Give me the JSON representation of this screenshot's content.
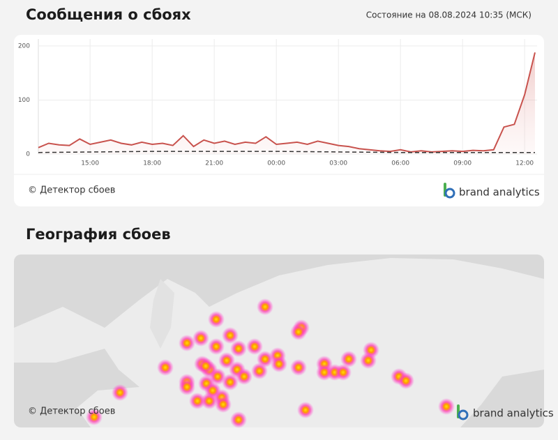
{
  "header": {
    "title": "Сообщения о сбоях",
    "status": "Состояние на 08.08.2024 10:35 (МСК)"
  },
  "chart_data": {
    "type": "line",
    "xlim": [
      12.5,
      36.6
    ],
    "ylim": [
      0,
      205
    ],
    "xticks": [
      {
        "value": 15,
        "label": "15:00"
      },
      {
        "value": 18,
        "label": "18:00"
      },
      {
        "value": 21,
        "label": "21:00"
      },
      {
        "value": 24,
        "label": "00:00"
      },
      {
        "value": 27,
        "label": "03:00"
      },
      {
        "value": 30,
        "label": "06:00"
      },
      {
        "value": 33,
        "label": "09:00"
      },
      {
        "value": 36,
        "label": "12:00"
      }
    ],
    "yticks": [
      0,
      100,
      200
    ],
    "grid": true,
    "series": [
      {
        "color": "#c8524d",
        "fill": true,
        "style": "solid",
        "x": [
          12.5,
          13,
          13.5,
          14,
          14.5,
          15,
          15.5,
          16,
          16.5,
          17,
          17.5,
          18,
          18.5,
          19,
          19.5,
          20,
          20.5,
          21,
          21.5,
          22,
          22.5,
          23,
          23.5,
          24,
          24.5,
          25,
          25.5,
          26,
          26.5,
          27,
          27.5,
          28,
          28.5,
          29,
          29.5,
          30,
          30.5,
          31,
          31.5,
          32,
          32.5,
          33,
          33.5,
          34,
          34.5,
          35,
          35.5,
          36,
          36.5
        ],
        "values": [
          12,
          20,
          17,
          16,
          28,
          18,
          22,
          26,
          20,
          17,
          22,
          18,
          20,
          16,
          34,
          14,
          26,
          20,
          24,
          18,
          22,
          20,
          32,
          18,
          20,
          22,
          18,
          24,
          20,
          16,
          14,
          10,
          8,
          6,
          5,
          8,
          4,
          6,
          4,
          5,
          6,
          5,
          7,
          6,
          8,
          50,
          55,
          110,
          188
        ]
      },
      {
        "color": "#333333",
        "fill": false,
        "style": "dashed",
        "x": [
          12.5,
          18,
          24,
          30,
          36.5
        ],
        "values": [
          3,
          5,
          5,
          3,
          3
        ]
      }
    ]
  },
  "chart_footer": {
    "copyright": "© Детектор сбоев",
    "brand": "brand analytics"
  },
  "map": {
    "title": "География сбоев",
    "copyright": "© Детектор сбоев",
    "brand": "brand analytics"
  }
}
